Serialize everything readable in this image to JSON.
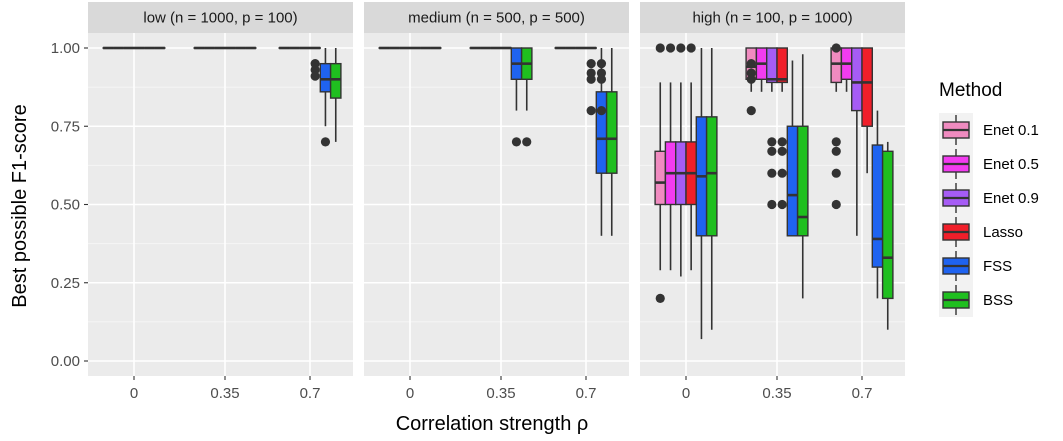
{
  "chart_data": {
    "type": "boxplot",
    "xlabel": "Correlation strength ρ",
    "ylabel": "Best possible F1-score",
    "ylim": [
      0,
      1
    ],
    "y_ticks": [
      "0.00",
      "0.25",
      "0.50",
      "0.75",
      "1.00"
    ],
    "categories": [
      "0",
      "0.35",
      "0.7"
    ],
    "grid": true,
    "legend": {
      "title": "Method",
      "position": "right"
    },
    "methods": [
      {
        "name": "Enet 0.1",
        "color": "#f08bc0"
      },
      {
        "name": "Enet 0.5",
        "color": "#f23cf0"
      },
      {
        "name": "Enet 0.9",
        "color": "#a65cf5"
      },
      {
        "name": "Lasso",
        "color": "#f01f2a"
      },
      {
        "name": "FSS",
        "color": "#1f63f0"
      },
      {
        "name": "BSS",
        "color": "#1fbf1f"
      }
    ],
    "panels": [
      {
        "label": "low (n = 1000, p = 100)",
        "groups": [
          {
            "rho": "0",
            "boxes": [
              {
                "method": "Enet 0.1",
                "min": 1,
                "q1": 1,
                "median": 1,
                "q3": 1,
                "max": 1,
                "outliers": []
              },
              {
                "method": "Enet 0.5",
                "min": 1,
                "q1": 1,
                "median": 1,
                "q3": 1,
                "max": 1,
                "outliers": []
              },
              {
                "method": "Enet 0.9",
                "min": 1,
                "q1": 1,
                "median": 1,
                "q3": 1,
                "max": 1,
                "outliers": []
              },
              {
                "method": "Lasso",
                "min": 1,
                "q1": 1,
                "median": 1,
                "q3": 1,
                "max": 1,
                "outliers": []
              },
              {
                "method": "FSS",
                "min": 1,
                "q1": 1,
                "median": 1,
                "q3": 1,
                "max": 1,
                "outliers": []
              },
              {
                "method": "BSS",
                "min": 1,
                "q1": 1,
                "median": 1,
                "q3": 1,
                "max": 1,
                "outliers": []
              }
            ]
          },
          {
            "rho": "0.35",
            "boxes": [
              {
                "method": "Enet 0.1",
                "min": 1,
                "q1": 1,
                "median": 1,
                "q3": 1,
                "max": 1,
                "outliers": []
              },
              {
                "method": "Enet 0.5",
                "min": 1,
                "q1": 1,
                "median": 1,
                "q3": 1,
                "max": 1,
                "outliers": []
              },
              {
                "method": "Enet 0.9",
                "min": 1,
                "q1": 1,
                "median": 1,
                "q3": 1,
                "max": 1,
                "outliers": []
              },
              {
                "method": "Lasso",
                "min": 1,
                "q1": 1,
                "median": 1,
                "q3": 1,
                "max": 1,
                "outliers": []
              },
              {
                "method": "FSS",
                "min": 1,
                "q1": 1,
                "median": 1,
                "q3": 1,
                "max": 1,
                "outliers": []
              },
              {
                "method": "BSS",
                "min": 1,
                "q1": 1,
                "median": 1,
                "q3": 1,
                "max": 1,
                "outliers": []
              }
            ]
          },
          {
            "rho": "0.7",
            "boxes": [
              {
                "method": "Enet 0.1",
                "min": 1,
                "q1": 1,
                "median": 1,
                "q3": 1,
                "max": 1,
                "outliers": []
              },
              {
                "method": "Enet 0.5",
                "min": 1,
                "q1": 1,
                "median": 1,
                "q3": 1,
                "max": 1,
                "outliers": []
              },
              {
                "method": "Enet 0.9",
                "min": 1,
                "q1": 1,
                "median": 1,
                "q3": 1,
                "max": 1,
                "outliers": []
              },
              {
                "method": "Lasso",
                "min": 1,
                "q1": 1,
                "median": 1,
                "q3": 1,
                "max": 1,
                "outliers": [
                  0.95,
                  0.93,
                  0.91
                ]
              },
              {
                "method": "FSS",
                "min": 0.75,
                "q1": 0.86,
                "median": 0.9,
                "q3": 0.95,
                "max": 1.0,
                "outliers": [
                  0.7
                ]
              },
              {
                "method": "BSS",
                "min": 0.7,
                "q1": 0.84,
                "median": 0.9,
                "q3": 0.95,
                "max": 1.0,
                "outliers": []
              }
            ]
          }
        ]
      },
      {
        "label": "medium (n = 500, p = 500)",
        "groups": [
          {
            "rho": "0",
            "boxes": [
              {
                "method": "Enet 0.1",
                "min": 1,
                "q1": 1,
                "median": 1,
                "q3": 1,
                "max": 1,
                "outliers": []
              },
              {
                "method": "Enet 0.5",
                "min": 1,
                "q1": 1,
                "median": 1,
                "q3": 1,
                "max": 1,
                "outliers": []
              },
              {
                "method": "Enet 0.9",
                "min": 1,
                "q1": 1,
                "median": 1,
                "q3": 1,
                "max": 1,
                "outliers": []
              },
              {
                "method": "Lasso",
                "min": 1,
                "q1": 1,
                "median": 1,
                "q3": 1,
                "max": 1,
                "outliers": []
              },
              {
                "method": "FSS",
                "min": 1,
                "q1": 1,
                "median": 1,
                "q3": 1,
                "max": 1,
                "outliers": []
              },
              {
                "method": "BSS",
                "min": 1,
                "q1": 1,
                "median": 1,
                "q3": 1,
                "max": 1,
                "outliers": []
              }
            ]
          },
          {
            "rho": "0.35",
            "boxes": [
              {
                "method": "Enet 0.1",
                "min": 1,
                "q1": 1,
                "median": 1,
                "q3": 1,
                "max": 1,
                "outliers": []
              },
              {
                "method": "Enet 0.5",
                "min": 1,
                "q1": 1,
                "median": 1,
                "q3": 1,
                "max": 1,
                "outliers": []
              },
              {
                "method": "Enet 0.9",
                "min": 1,
                "q1": 1,
                "median": 1,
                "q3": 1,
                "max": 1,
                "outliers": []
              },
              {
                "method": "Lasso",
                "min": 1,
                "q1": 1,
                "median": 1,
                "q3": 1,
                "max": 1,
                "outliers": []
              },
              {
                "method": "FSS",
                "min": 0.8,
                "q1": 0.9,
                "median": 0.95,
                "q3": 1.0,
                "max": 1.0,
                "outliers": [
                  0.7
                ]
              },
              {
                "method": "BSS",
                "min": 0.8,
                "q1": 0.9,
                "median": 0.95,
                "q3": 1.0,
                "max": 1.0,
                "outliers": [
                  0.7
                ]
              }
            ]
          },
          {
            "rho": "0.7",
            "boxes": [
              {
                "method": "Enet 0.1",
                "min": 1,
                "q1": 1,
                "median": 1,
                "q3": 1,
                "max": 1,
                "outliers": []
              },
              {
                "method": "Enet 0.5",
                "min": 1,
                "q1": 1,
                "median": 1,
                "q3": 1,
                "max": 1,
                "outliers": []
              },
              {
                "method": "Enet 0.9",
                "min": 1,
                "q1": 1,
                "median": 1,
                "q3": 1,
                "max": 1,
                "outliers": []
              },
              {
                "method": "Lasso",
                "min": 1,
                "q1": 1,
                "median": 1,
                "q3": 1,
                "max": 1,
                "outliers": [
                  0.95,
                  0.92,
                  0.9,
                  0.8
                ]
              },
              {
                "method": "FSS",
                "min": 0.4,
                "q1": 0.6,
                "median": 0.71,
                "q3": 0.86,
                "max": 1.0,
                "outliers": [
                  0.95,
                  0.92,
                  0.9,
                  0.8
                ]
              },
              {
                "method": "BSS",
                "min": 0.4,
                "q1": 0.6,
                "median": 0.71,
                "q3": 0.86,
                "max": 1.0,
                "outliers": []
              }
            ]
          }
        ]
      },
      {
        "label": "high (n = 100, p = 1000)",
        "groups": [
          {
            "rho": "0",
            "boxes": [
              {
                "method": "Enet 0.1",
                "min": 0.29,
                "q1": 0.5,
                "median": 0.57,
                "q3": 0.67,
                "max": 0.89,
                "outliers": [
                  1.0,
                  0.2
                ]
              },
              {
                "method": "Enet 0.5",
                "min": 0.29,
                "q1": 0.5,
                "median": 0.6,
                "q3": 0.7,
                "max": 0.89,
                "outliers": [
                  1.0
                ]
              },
              {
                "method": "Enet 0.9",
                "min": 0.27,
                "q1": 0.5,
                "median": 0.6,
                "q3": 0.7,
                "max": 0.89,
                "outliers": [
                  1.0
                ]
              },
              {
                "method": "Lasso",
                "min": 0.29,
                "q1": 0.5,
                "median": 0.6,
                "q3": 0.7,
                "max": 0.89,
                "outliers": [
                  1.0
                ]
              },
              {
                "method": "FSS",
                "min": 0.07,
                "q1": 0.4,
                "median": 0.59,
                "q3": 0.78,
                "max": 1.0,
                "outliers": []
              },
              {
                "method": "BSS",
                "min": 0.1,
                "q1": 0.4,
                "median": 0.6,
                "q3": 0.78,
                "max": 1.0,
                "outliers": []
              }
            ]
          },
          {
            "rho": "0.35",
            "boxes": [
              {
                "method": "Enet 0.1",
                "min": 0.86,
                "q1": 0.9,
                "median": 0.94,
                "q3": 1.0,
                "max": 1.0,
                "outliers": [
                  0.95,
                  0.92,
                  0.9,
                  0.8
                ]
              },
              {
                "method": "Enet 0.5",
                "min": 0.86,
                "q1": 0.9,
                "median": 0.95,
                "q3": 1.0,
                "max": 1.0,
                "outliers": []
              },
              {
                "method": "Enet 0.9",
                "min": 0.86,
                "q1": 0.89,
                "median": 0.9,
                "q3": 1.0,
                "max": 1.0,
                "outliers": [
                  0.7,
                  0.67,
                  0.6,
                  0.5
                ]
              },
              {
                "method": "Lasso",
                "min": 0.86,
                "q1": 0.89,
                "median": 0.9,
                "q3": 1.0,
                "max": 1.0,
                "outliers": [
                  0.7,
                  0.67,
                  0.6,
                  0.5
                ]
              },
              {
                "method": "FSS",
                "min": 0.4,
                "q1": 0.4,
                "median": 0.53,
                "q3": 0.75,
                "max": 0.96,
                "outliers": []
              },
              {
                "method": "BSS",
                "min": 0.2,
                "q1": 0.4,
                "median": 0.46,
                "q3": 0.75,
                "max": 0.98,
                "outliers": []
              }
            ]
          },
          {
            "rho": "0.7",
            "boxes": [
              {
                "method": "Enet 0.1",
                "min": 0.86,
                "q1": 0.89,
                "median": 0.95,
                "q3": 1.0,
                "max": 1.0,
                "outliers": [
                  1.0,
                  0.7,
                  0.67,
                  0.6,
                  0.5
                ]
              },
              {
                "method": "Enet 0.5",
                "min": 0.86,
                "q1": 0.9,
                "median": 0.95,
                "q3": 1.0,
                "max": 1.0,
                "outliers": []
              },
              {
                "method": "Enet 0.9",
                "min": 0.4,
                "q1": 0.8,
                "median": 0.89,
                "q3": 1.0,
                "max": 1.0,
                "outliers": []
              },
              {
                "method": "Lasso",
                "min": 0.6,
                "q1": 0.75,
                "median": 0.89,
                "q3": 1.0,
                "max": 1.0,
                "outliers": []
              },
              {
                "method": "FSS",
                "min": 0.2,
                "q1": 0.3,
                "median": 0.39,
                "q3": 0.69,
                "max": 0.8,
                "outliers": []
              },
              {
                "method": "BSS",
                "min": 0.1,
                "q1": 0.2,
                "median": 0.33,
                "q3": 0.67,
                "max": 0.7,
                "outliers": []
              }
            ]
          }
        ]
      }
    ]
  }
}
